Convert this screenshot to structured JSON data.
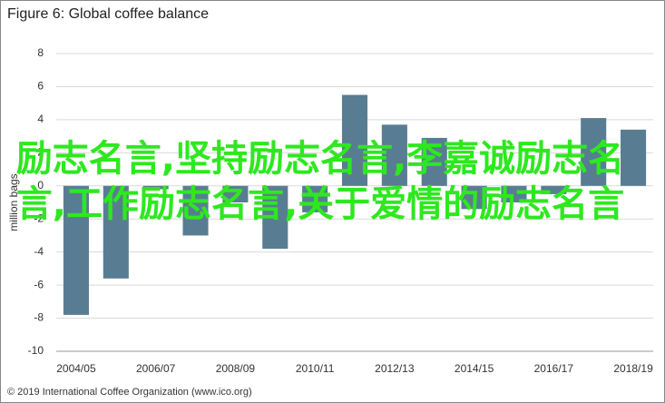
{
  "chart_data": {
    "type": "bar",
    "title": "Figure 6: Global coffee balance",
    "y_label": "million bags",
    "categories": [
      "2004/05",
      null,
      "2006/07",
      null,
      "2008/09",
      null,
      "2010/11",
      null,
      "2012/13",
      null,
      "2014/15",
      null,
      "2016/17",
      null,
      "2018/19"
    ],
    "values": [
      -7.8,
      -5.6,
      -0.2,
      -3.0,
      -1.0,
      -3.8,
      -1.6,
      5.5,
      3.7,
      2.9,
      -1.4,
      -1.0,
      -0.5,
      4.1,
      3.4
    ],
    "color": "#587d92",
    "ylim": [
      -10,
      8
    ],
    "yticks": [
      -10,
      -8,
      -6,
      -4,
      -2,
      0,
      2,
      4,
      6,
      8
    ],
    "grid": true,
    "source": "© 2019 International Coffee Organization (www.ico.org)"
  },
  "overlay_text": "励志名言,坚持励志名言,李嘉诚励志名言,工作励志名言,关于爱情的励志名言"
}
